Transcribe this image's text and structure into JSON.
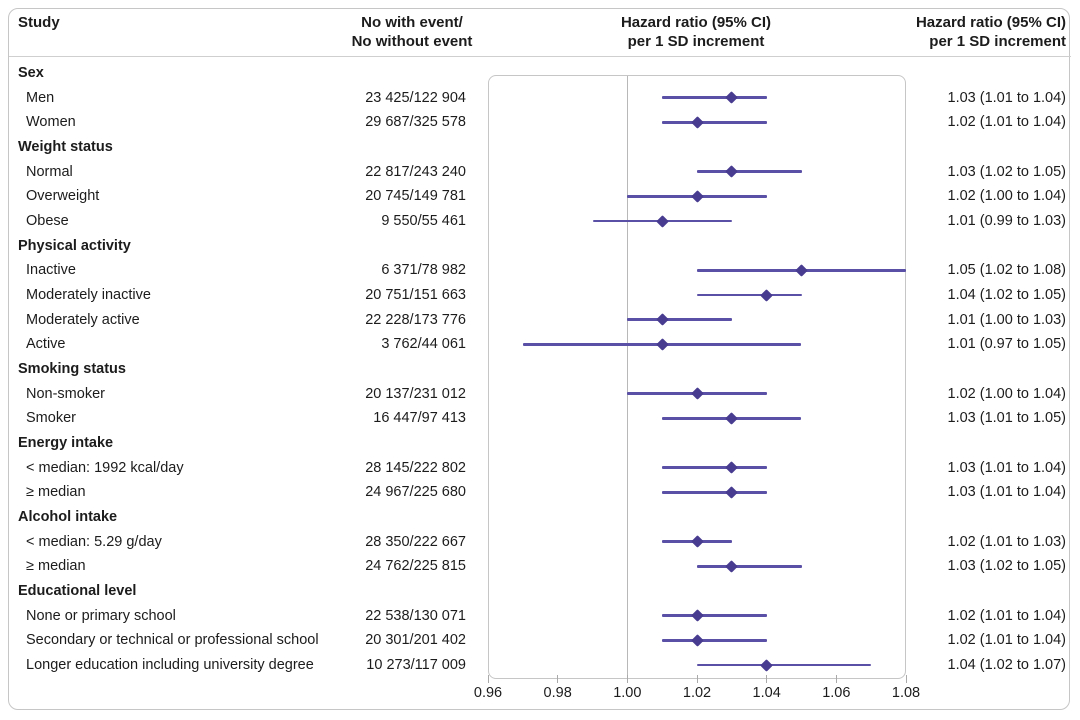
{
  "header": {
    "study": "Study",
    "events_line1": "No with event/",
    "events_line2": "No without event",
    "plot_title_line1": "Hazard ratio (95% CI)",
    "plot_title_line2": "per 1 SD increment",
    "hr_col_line1": "Hazard ratio (95% CI)",
    "hr_col_line2": "per 1 SD increment"
  },
  "chart_data": {
    "type": "forest",
    "xlim": [
      0.96,
      1.08
    ],
    "x_ticks": [
      "0.96",
      "0.98",
      "1.00",
      "1.02",
      "1.04",
      "1.06",
      "1.08"
    ],
    "reference_line": 1.0,
    "legend_position": "none",
    "colors": {
      "ci_line": "#5a50a5",
      "marker": "#473c90",
      "frame": "#c6c6c6",
      "ref_line": "#b8b8b8",
      "text": "#1c1c1c"
    },
    "rows": [
      {
        "kind": "group",
        "label": "Sex"
      },
      {
        "kind": "item",
        "label": "Men",
        "events": "23 425/122 904",
        "hr": 1.03,
        "lo": 1.01,
        "hi": 1.04,
        "ci_text": "1.03 (1.01 to 1.04)"
      },
      {
        "kind": "item",
        "label": "Women",
        "events": "29 687/325 578",
        "hr": 1.02,
        "lo": 1.01,
        "hi": 1.04,
        "ci_text": "1.02 (1.01 to 1.04)"
      },
      {
        "kind": "group",
        "label": "Weight status"
      },
      {
        "kind": "item",
        "label": "Normal",
        "events": "22 817/243 240",
        "hr": 1.03,
        "lo": 1.02,
        "hi": 1.05,
        "ci_text": "1.03 (1.02 to 1.05)"
      },
      {
        "kind": "item",
        "label": "Overweight",
        "events": "20 745/149 781",
        "hr": 1.02,
        "lo": 1.0,
        "hi": 1.04,
        "ci_text": "1.02 (1.00 to 1.04)"
      },
      {
        "kind": "item",
        "label": "Obese",
        "events": "9 550/55 461",
        "hr": 1.01,
        "lo": 0.99,
        "hi": 1.03,
        "ci_text": "1.01 (0.99 to 1.03)"
      },
      {
        "kind": "group",
        "label": "Physical activity"
      },
      {
        "kind": "item",
        "label": "Inactive",
        "events": "6 371/78 982",
        "hr": 1.05,
        "lo": 1.02,
        "hi": 1.08,
        "ci_text": "1.05 (1.02 to 1.08)"
      },
      {
        "kind": "item",
        "label": "Moderately inactive",
        "events": "20 751/151 663",
        "hr": 1.04,
        "lo": 1.02,
        "hi": 1.05,
        "ci_text": "1.04 (1.02 to 1.05)"
      },
      {
        "kind": "item",
        "label": "Moderately active",
        "events": "22 228/173 776",
        "hr": 1.01,
        "lo": 1.0,
        "hi": 1.03,
        "ci_text": "1.01 (1.00 to 1.03)"
      },
      {
        "kind": "item",
        "label": "Active",
        "events": "3 762/44 061",
        "hr": 1.01,
        "lo": 0.97,
        "hi": 1.05,
        "ci_text": "1.01 (0.97 to 1.05)"
      },
      {
        "kind": "group",
        "label": "Smoking status"
      },
      {
        "kind": "item",
        "label": "Non-smoker",
        "events": "20 137/231 012",
        "hr": 1.02,
        "lo": 1.0,
        "hi": 1.04,
        "ci_text": "1.02 (1.00 to 1.04)"
      },
      {
        "kind": "item",
        "label": "Smoker",
        "events": "16 447/97 413",
        "hr": 1.03,
        "lo": 1.01,
        "hi": 1.05,
        "ci_text": "1.03 (1.01 to 1.05)"
      },
      {
        "kind": "group",
        "label": "Energy intake"
      },
      {
        "kind": "item",
        "label": "< median: 1992 kcal/day",
        "events": "28 145/222 802",
        "hr": 1.03,
        "lo": 1.01,
        "hi": 1.04,
        "ci_text": "1.03 (1.01 to 1.04)"
      },
      {
        "kind": "item",
        "label": "≥ median",
        "events": "24 967/225 680",
        "hr": 1.03,
        "lo": 1.01,
        "hi": 1.04,
        "ci_text": "1.03 (1.01 to 1.04)"
      },
      {
        "kind": "group",
        "label": "Alcohol intake"
      },
      {
        "kind": "item",
        "label": "< median: 5.29 g/day",
        "events": "28 350/222 667",
        "hr": 1.02,
        "lo": 1.01,
        "hi": 1.03,
        "ci_text": "1.02 (1.01 to 1.03)"
      },
      {
        "kind": "item",
        "label": "≥ median",
        "events": "24 762/225 815",
        "hr": 1.03,
        "lo": 1.02,
        "hi": 1.05,
        "ci_text": "1.03 (1.02 to 1.05)"
      },
      {
        "kind": "group",
        "label": "Educational level"
      },
      {
        "kind": "item",
        "label": "None or primary school",
        "events": "22 538/130 071",
        "hr": 1.02,
        "lo": 1.01,
        "hi": 1.04,
        "ci_text": "1.02 (1.01 to 1.04)"
      },
      {
        "kind": "item",
        "label": "Secondary or technical or professional school",
        "events": "20 301/201 402",
        "hr": 1.02,
        "lo": 1.01,
        "hi": 1.04,
        "ci_text": "1.02 (1.01 to 1.04)"
      },
      {
        "kind": "item",
        "label": "Longer education including university degree",
        "events": "10 273/117 009",
        "hr": 1.04,
        "lo": 1.02,
        "hi": 1.07,
        "ci_text": "1.04 (1.02 to 1.07)"
      }
    ]
  }
}
